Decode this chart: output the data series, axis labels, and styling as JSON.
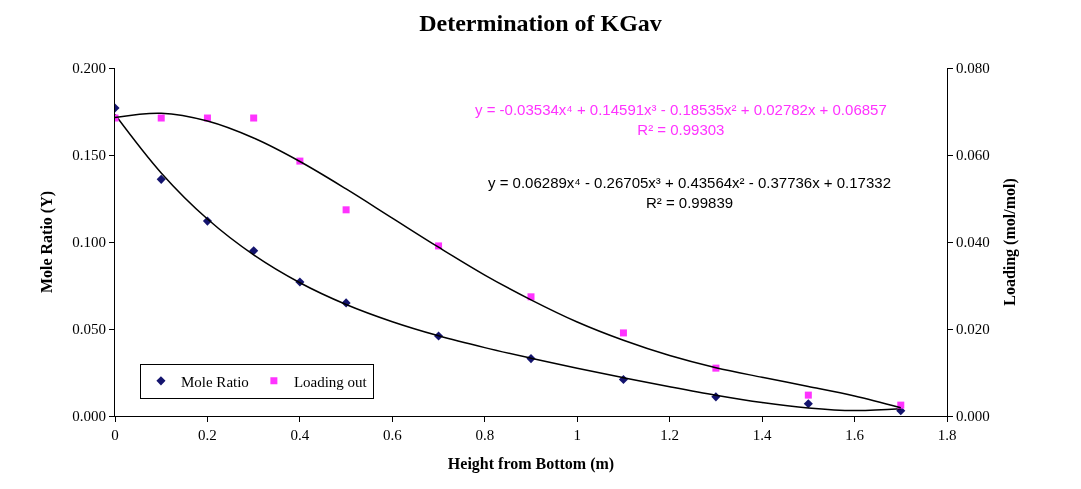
{
  "chart_data": {
    "type": "scatter",
    "title": "Determination of KGav",
    "xlabel": "Height from Bottom (m)",
    "ylabel": "Mole Ratio (Y)",
    "y2label": "Loading (mol/mol)",
    "xlim": [
      0,
      1.8
    ],
    "xticks": [
      0,
      0.2,
      0.4,
      0.6,
      0.8,
      1,
      1.2,
      1.4,
      1.6,
      1.8
    ],
    "ylim": [
      0,
      0.2
    ],
    "yticks": [
      {
        "value": 0,
        "label": "0.000"
      },
      {
        "value": 0.05,
        "label": "0.050"
      },
      {
        "value": 0.1,
        "label": "0.100"
      },
      {
        "value": 0.15,
        "label": "0.150"
      },
      {
        "value": 0.2,
        "label": "0.200"
      }
    ],
    "y2lim": [
      0,
      0.08
    ],
    "y2ticks": [
      {
        "value": 0,
        "label": "0.000"
      },
      {
        "value": 0.02,
        "label": "0.020"
      },
      {
        "value": 0.04,
        "label": "0.040"
      },
      {
        "value": 0.06,
        "label": "0.060"
      },
      {
        "value": 0.08,
        "label": "0.080"
      }
    ],
    "legend": "bottom left",
    "x": [
      0,
      0.1,
      0.2,
      0.3,
      0.4,
      0.5,
      0.7,
      0.9,
      1.1,
      1.3,
      1.5,
      1.7
    ],
    "series": [
      {
        "name": "Mole Ratio",
        "color": "#14146e",
        "marker": "diamond",
        "values": [
          0.177,
          0.136,
          0.112,
          0.095,
          0.077,
          0.065,
          0.046,
          0.033,
          0.021,
          0.011,
          0.007,
          0.003
        ]
      },
      {
        "name": "Loading out",
        "color": "#ff33ff",
        "marker": "square",
        "axis": "y2",
        "values": [
          0.0685,
          0.0685,
          0.0685,
          0.0685,
          0.0586,
          0.0474,
          0.0391,
          0.0274,
          0.0191,
          0.011,
          0.0048,
          0.0025
        ]
      },
      {
        "type": "line",
        "color": "#000000",
        "marker": "none",
        "x": [
          0,
          0.1,
          0.2,
          0.3,
          0.4,
          0.5,
          0.6,
          0.7,
          0.8,
          0.9,
          1.0,
          1.1,
          1.2,
          1.3,
          1.4,
          1.5,
          1.6,
          1.7
        ],
        "values": [
          0.1733,
          0.1397,
          0.1132,
          0.0926,
          0.0766,
          0.0641,
          0.0542,
          0.0461,
          0.0393,
          0.0332,
          0.0274,
          0.022,
          0.0168,
          0.0119,
          0.0077,
          0.0046,
          0.0031,
          0.0041
        ]
      },
      {
        "type": "line",
        "color": "#000000",
        "marker": "none",
        "axis": "y2",
        "x": [
          0,
          0.1,
          0.2,
          0.3,
          0.4,
          0.5,
          0.6,
          0.7,
          0.8,
          0.9,
          1.0,
          1.1,
          1.2,
          1.3,
          1.4,
          1.5,
          1.6,
          1.7
        ],
        "values": [
          0.0686,
          0.0696,
          0.0678,
          0.0639,
          0.0585,
          0.0522,
          0.0455,
          0.0388,
          0.0324,
          0.0267,
          0.0216,
          0.0174,
          0.0139,
          0.0111,
          0.0089,
          0.0068,
          0.0046,
          0.0019
        ]
      }
    ],
    "annotations": [
      "y = -0.03534x⁴ + 0.14591x³ - 0.18535x² + 0.02782x + 0.06857\nR² = 0.99303",
      "y = 0.06289x⁴ - 0.26705x³ + 0.43564x² - 0.37736x + 0.17332\nR² = 0.99839"
    ]
  }
}
